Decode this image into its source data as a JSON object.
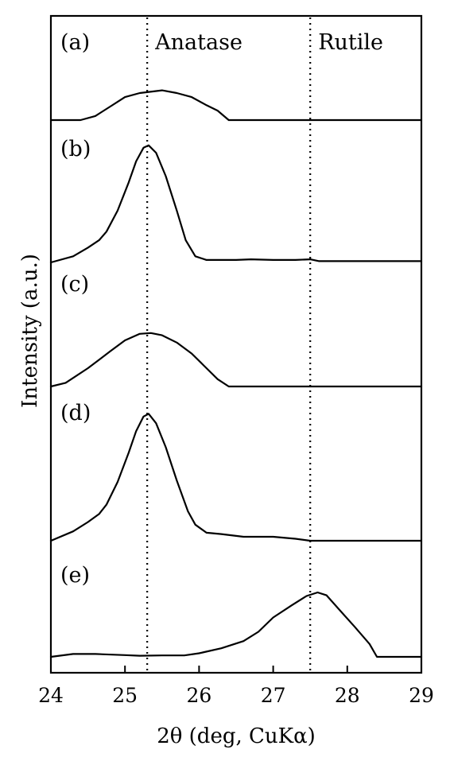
{
  "chart_data": {
    "type": "line",
    "xlabel": "2θ (deg, CuKα)",
    "ylabel": "Intensity (a.u.)",
    "xlim": [
      24,
      29
    ],
    "x_ticks": [
      "24",
      "25",
      "26",
      "27",
      "28",
      "29"
    ],
    "grid": false,
    "reference_lines": [
      {
        "label": "Anatase",
        "x": 25.3
      },
      {
        "label": "Rutile",
        "x": 27.5
      }
    ],
    "panels": [
      {
        "label": "(a)",
        "points": [
          [
            24,
            0
          ],
          [
            24.4,
            0
          ],
          [
            24.6,
            0.03
          ],
          [
            24.8,
            0.1
          ],
          [
            25.0,
            0.17
          ],
          [
            25.2,
            0.2
          ],
          [
            25.5,
            0.22
          ],
          [
            25.7,
            0.2
          ],
          [
            25.9,
            0.17
          ],
          [
            26.1,
            0.11
          ],
          [
            26.25,
            0.07
          ],
          [
            26.4,
            0.0
          ],
          [
            29,
            0
          ]
        ]
      },
      {
        "label": "(b)",
        "points": [
          [
            24,
            0
          ],
          [
            24.3,
            0.05
          ],
          [
            24.5,
            0.12
          ],
          [
            24.65,
            0.18
          ],
          [
            24.75,
            0.25
          ],
          [
            24.9,
            0.42
          ],
          [
            25.05,
            0.65
          ],
          [
            25.15,
            0.82
          ],
          [
            25.25,
            0.93
          ],
          [
            25.32,
            0.95
          ],
          [
            25.42,
            0.89
          ],
          [
            25.55,
            0.7
          ],
          [
            25.7,
            0.42
          ],
          [
            25.82,
            0.18
          ],
          [
            25.95,
            0.05
          ],
          [
            26.1,
            0.02
          ],
          [
            26.5,
            0.02
          ],
          [
            26.7,
            0.025
          ],
          [
            27.0,
            0.02
          ],
          [
            27.3,
            0.02
          ],
          [
            27.5,
            0.025
          ],
          [
            27.62,
            0.01
          ],
          [
            29,
            0.01
          ]
        ]
      },
      {
        "label": "(c)",
        "points": [
          [
            24,
            0
          ],
          [
            24.2,
            0.05
          ],
          [
            24.5,
            0.25
          ],
          [
            24.8,
            0.48
          ],
          [
            25.0,
            0.63
          ],
          [
            25.2,
            0.72
          ],
          [
            25.35,
            0.73
          ],
          [
            25.5,
            0.7
          ],
          [
            25.7,
            0.6
          ],
          [
            25.9,
            0.45
          ],
          [
            26.1,
            0.25
          ],
          [
            26.25,
            0.1
          ],
          [
            26.4,
            0.0
          ],
          [
            29,
            0
          ]
        ]
      },
      {
        "label": "(d)",
        "points": [
          [
            24,
            0
          ],
          [
            24.3,
            0.07
          ],
          [
            24.5,
            0.14
          ],
          [
            24.65,
            0.2
          ],
          [
            24.75,
            0.27
          ],
          [
            24.9,
            0.44
          ],
          [
            25.05,
            0.66
          ],
          [
            25.15,
            0.82
          ],
          [
            25.25,
            0.93
          ],
          [
            25.32,
            0.95
          ],
          [
            25.42,
            0.88
          ],
          [
            25.55,
            0.7
          ],
          [
            25.7,
            0.45
          ],
          [
            25.85,
            0.22
          ],
          [
            25.95,
            0.12
          ],
          [
            26.1,
            0.06
          ],
          [
            26.3,
            0.05
          ],
          [
            26.6,
            0.03
          ],
          [
            27.0,
            0.03
          ],
          [
            27.3,
            0.015
          ],
          [
            27.5,
            0.0
          ],
          [
            29,
            0.0
          ]
        ]
      },
      {
        "label": "(e)",
        "points": [
          [
            24,
            0
          ],
          [
            24.3,
            0.04
          ],
          [
            24.6,
            0.04
          ],
          [
            25.0,
            0.025
          ],
          [
            25.2,
            0.015
          ],
          [
            25.5,
            0.02
          ],
          [
            25.8,
            0.02
          ],
          [
            26.0,
            0.05
          ],
          [
            26.3,
            0.12
          ],
          [
            26.6,
            0.22
          ],
          [
            26.8,
            0.35
          ],
          [
            27.0,
            0.55
          ],
          [
            27.25,
            0.72
          ],
          [
            27.45,
            0.85
          ],
          [
            27.6,
            0.9
          ],
          [
            27.72,
            0.86
          ],
          [
            27.9,
            0.65
          ],
          [
            28.1,
            0.42
          ],
          [
            28.3,
            0.18
          ],
          [
            28.4,
            0.0
          ],
          [
            29,
            0.0
          ]
        ]
      }
    ]
  }
}
